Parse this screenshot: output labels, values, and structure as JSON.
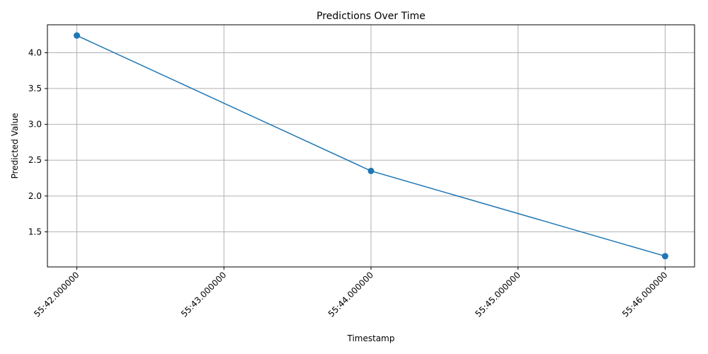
{
  "chart_data": {
    "type": "line",
    "title": "Predictions Over Time",
    "xlabel": "Timestamp",
    "ylabel": "Predicted Value",
    "x_ticks": [
      "55:42.000000",
      "55:43.000000",
      "55:44.000000",
      "55:45.000000",
      "55:46.000000"
    ],
    "xlim": [
      "55:41.800000",
      "55:46.200000"
    ],
    "y_ticks": [
      1.5,
      2.0,
      2.5,
      3.0,
      3.5,
      4.0
    ],
    "ylim": [
      1.01,
      4.39
    ],
    "grid": true,
    "legend": "none",
    "series": [
      {
        "x": [
          "55:42.000000",
          "55:44.000000",
          "55:46.000000"
        ],
        "values": [
          4.24,
          2.35,
          1.16
        ],
        "color": "#1f77b4",
        "marker": "circle"
      }
    ]
  }
}
